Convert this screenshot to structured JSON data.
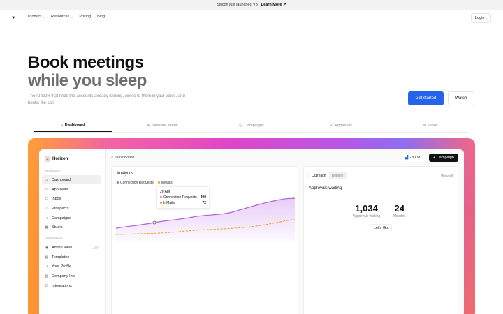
{
  "banner": {
    "text": "Silicon just launched V3",
    "link": "Learn More ↗"
  },
  "nav": {
    "items": [
      {
        "label": "Product",
        "chevron": true
      },
      {
        "label": "Resources",
        "chevron": true
      },
      {
        "label": "Pricing",
        "chevron": false
      },
      {
        "label": "Blog",
        "chevron": false
      }
    ],
    "login": "Login"
  },
  "hero": {
    "title_line1": "Book meetings",
    "title_line2": "while you sleep",
    "subtitle": "The AI SDR that finds the accounts already looking, writes to them in your voice, and books the call.",
    "primary_cta": "Get started",
    "secondary_cta": "Watch"
  },
  "tabs": [
    {
      "label": "Dashboard",
      "icon": "home-icon"
    },
    {
      "label": "Website Intent",
      "icon": "globe-icon"
    },
    {
      "label": "Campaigns",
      "icon": "target-icon"
    },
    {
      "label": "Approvals",
      "icon": "check-icon"
    },
    {
      "label": "Inbox",
      "icon": "mail-icon"
    }
  ],
  "colors": {
    "primary": "#2563eb",
    "purple": "#b45fe0",
    "orange": "#f59e0b",
    "dark": "#111111"
  },
  "app": {
    "workspace": {
      "avatar": "H",
      "name": "Horizon"
    },
    "sections": {
      "workspace": "Workspace",
      "organisation": "Organisation"
    },
    "sidebar_workspace": [
      {
        "label": "Dashboard",
        "icon": "home-icon"
      },
      {
        "label": "Approvals",
        "icon": "check-square-icon"
      },
      {
        "label": "Inbox",
        "icon": "inbox-icon"
      },
      {
        "label": "Prospects",
        "icon": "users-icon"
      },
      {
        "label": "Campaigns",
        "icon": "megaphone-icon"
      },
      {
        "label": "Studio",
        "icon": "grid-icon"
      }
    ],
    "sidebar_org": [
      {
        "label": "Admin View",
        "icon": "eye-icon"
      },
      {
        "label": "Templates",
        "icon": "file-icon"
      },
      {
        "label": "Your Profile",
        "icon": "user-icon"
      },
      {
        "label": "Company Info",
        "icon": "building-icon"
      },
      {
        "label": "Integrations",
        "icon": "plug-icon"
      }
    ],
    "breadcrumb": "Dashboard",
    "counter": "23 / 50",
    "campaign_button": "+ Campaign",
    "analytics": {
      "title": "Analytics",
      "legend": [
        "Connection Requests",
        "InMails"
      ],
      "tooltip": {
        "date": "20 Apr",
        "rows": [
          {
            "label": "Connection Requests",
            "value": "400"
          },
          {
            "label": "InMails",
            "value": "72"
          }
        ]
      }
    },
    "approvals": {
      "tabs": [
        "Outreach",
        "Replies"
      ],
      "view_all": "View all",
      "title": "Approvals waiting",
      "stat1": {
        "value": "1,034",
        "label": "Approvals waiting"
      },
      "stat2": {
        "value": "24",
        "label": "Minutes"
      },
      "cta": "Let's Go"
    }
  }
}
